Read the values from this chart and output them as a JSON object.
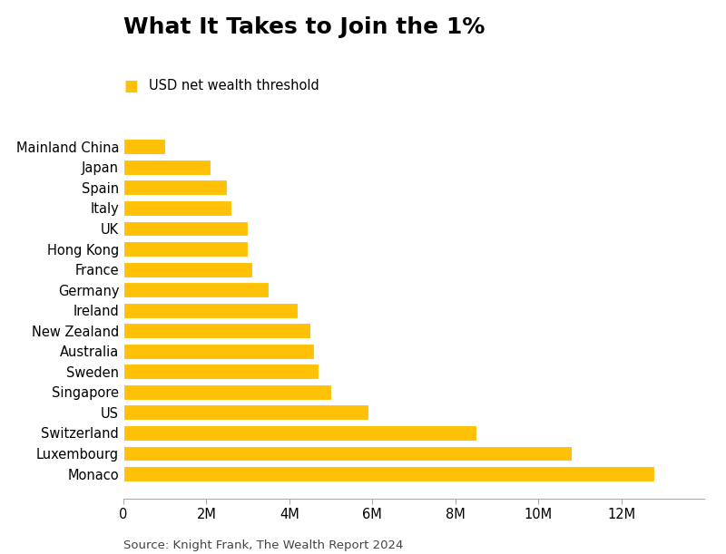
{
  "title": "What It Takes to Join the 1%",
  "legend_label": "USD net wealth threshold",
  "source": "Source: Knight Frank, The Wealth Report 2024",
  "bar_color": "#FFC107",
  "background_color": "#FFFFFF",
  "categories": [
    "Mainland China",
    "Japan",
    "Spain",
    "Italy",
    "UK",
    "Hong Kong",
    "France",
    "Germany",
    "Ireland",
    "New Zealand",
    "Australia",
    "Sweden",
    "Singapore",
    "US",
    "Switzerland",
    "Luxembourg",
    "Monaco"
  ],
  "values": [
    1000000,
    2100000,
    2500000,
    2600000,
    3000000,
    3000000,
    3100000,
    3500000,
    4200000,
    4500000,
    4600000,
    4700000,
    5000000,
    5900000,
    8500000,
    10800000,
    12800000
  ],
  "xlim": [
    0,
    14000000
  ],
  "xticks": [
    0,
    2000000,
    4000000,
    6000000,
    8000000,
    10000000,
    12000000
  ],
  "xtick_labels": [
    "0",
    "2M",
    "4M",
    "6M",
    "8M",
    "10M",
    "12M"
  ],
  "title_fontsize": 18,
  "tick_fontsize": 10.5,
  "label_fontsize": 10.5,
  "source_fontsize": 9.5
}
